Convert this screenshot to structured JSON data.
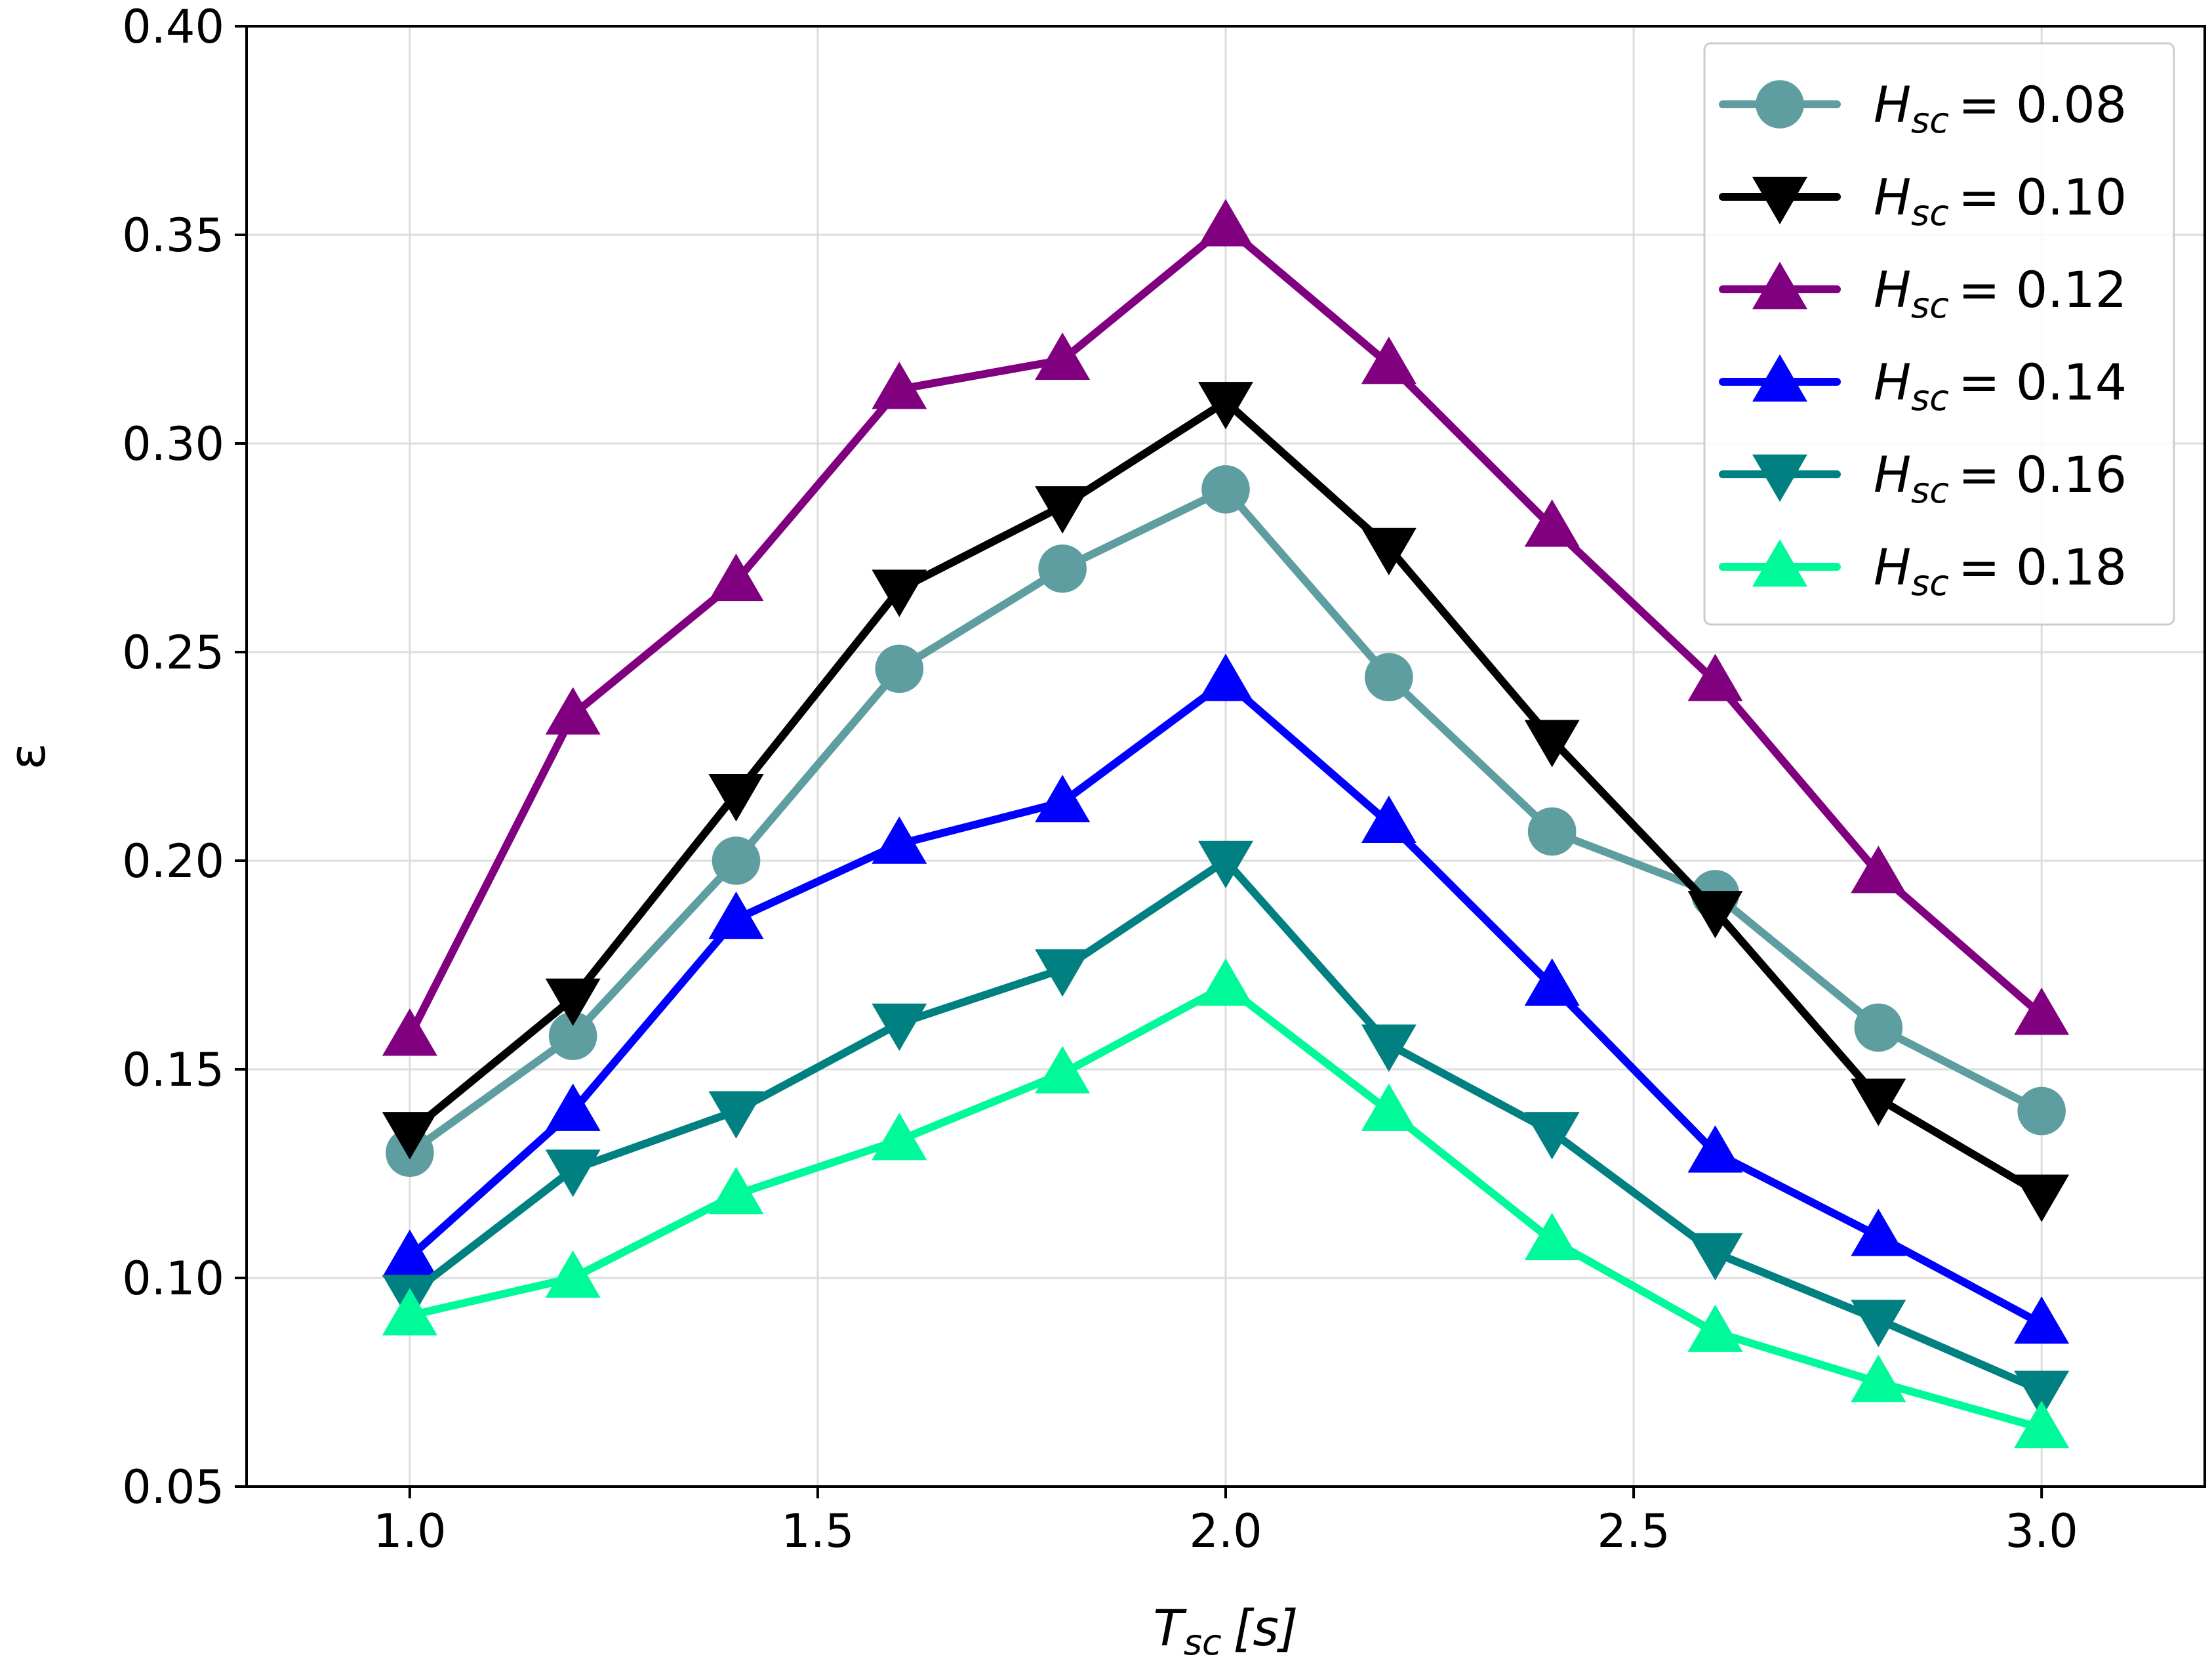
{
  "chart_data": {
    "type": "line",
    "title": "",
    "xlabel": "T_sc [s]",
    "xlabel_main": "T",
    "xlabel_sub": "sc",
    "xlabel_unit": "[s]",
    "ylabel": "ε",
    "xlim": [
      0.8,
      3.2
    ],
    "ylim": [
      0.05,
      0.4
    ],
    "grid": true,
    "legend_position": "top-right",
    "x_ticks": [
      1.0,
      1.5,
      2.0,
      2.5,
      3.0
    ],
    "x_tick_labels": [
      "1.0",
      "1.5",
      "2.0",
      "2.5",
      "3.0"
    ],
    "y_ticks": [
      0.05,
      0.1,
      0.15,
      0.2,
      0.25,
      0.3,
      0.35,
      0.4
    ],
    "y_tick_labels": [
      "0.05",
      "0.10",
      "0.15",
      "0.20",
      "0.25",
      "0.30",
      "0.35",
      "0.40"
    ],
    "x": [
      1.0,
      1.2,
      1.4,
      1.6,
      1.8,
      2.0,
      2.2,
      2.4,
      2.6,
      2.8,
      3.0
    ],
    "series": [
      {
        "name": "H_sc = 0.08",
        "legend_main": "H",
        "legend_sub": "sc",
        "legend_value": "= 0.08",
        "color": "#5f9ea0",
        "marker": "circle",
        "values": [
          0.13,
          0.158,
          0.2,
          0.246,
          0.27,
          0.289,
          0.244,
          0.207,
          0.192,
          0.16,
          0.14
        ]
      },
      {
        "name": "H_sc = 0.10",
        "legend_main": "H",
        "legend_sub": "sc",
        "legend_value": "= 0.10",
        "color": "#000000",
        "marker": "triangle-down",
        "values": [
          0.135,
          0.167,
          0.216,
          0.265,
          0.285,
          0.31,
          0.275,
          0.229,
          0.188,
          0.143,
          0.12
        ]
      },
      {
        "name": "H_sc = 0.12",
        "legend_main": "H",
        "legend_sub": "sc",
        "legend_value": "= 0.12",
        "color": "#800080",
        "marker": "triangle-up",
        "values": [
          0.158,
          0.235,
          0.267,
          0.313,
          0.32,
          0.352,
          0.319,
          0.28,
          0.243,
          0.197,
          0.163
        ]
      },
      {
        "name": "H_sc = 0.14",
        "legend_main": "H",
        "legend_sub": "sc",
        "legend_value": "= 0.14",
        "color": "#0000ff",
        "marker": "triangle-up",
        "values": [
          0.105,
          0.14,
          0.186,
          0.204,
          0.214,
          0.243,
          0.209,
          0.17,
          0.13,
          0.11,
          0.089
        ]
      },
      {
        "name": "H_sc = 0.16",
        "legend_main": "H",
        "legend_sub": "sc",
        "legend_value": "= 0.16",
        "color": "#008080",
        "marker": "triangle-down",
        "values": [
          0.096,
          0.126,
          0.14,
          0.161,
          0.174,
          0.2,
          0.156,
          0.135,
          0.106,
          0.09,
          0.073
        ]
      },
      {
        "name": "H_sc = 0.18",
        "legend_main": "H",
        "legend_sub": "sc",
        "legend_value": "= 0.18",
        "color": "#00fa9a",
        "marker": "triangle-up",
        "values": [
          0.091,
          0.1,
          0.12,
          0.133,
          0.149,
          0.17,
          0.14,
          0.109,
          0.087,
          0.075,
          0.064
        ]
      }
    ]
  }
}
